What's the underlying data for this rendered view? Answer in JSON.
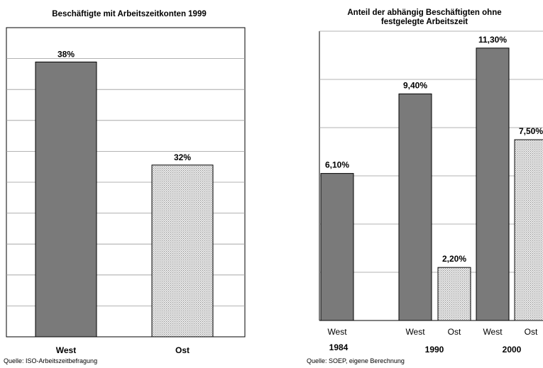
{
  "colors": {
    "west_fill": "#7a7a7a",
    "ost_fill": "#e4e4e4",
    "frame": "#000000",
    "grid": "#9a9a9a"
  },
  "chart_data": [
    {
      "type": "bar",
      "title": "Beschäftigte mit Arbeitszeitkonten 1999",
      "categories": [
        "West",
        "Ost"
      ],
      "values": [
        38,
        32
      ],
      "value_labels": [
        "38%",
        "32%"
      ],
      "ylim": [
        22,
        40
      ],
      "grid": true,
      "source": "Quelle: ISO-Arbeitszeitbefragung"
    },
    {
      "type": "bar",
      "title_lines": [
        "Anteil der abhängig Beschäftigten ohne",
        "festgelegte Arbeitszeit"
      ],
      "groups": [
        "1984",
        "1990",
        "2000"
      ],
      "bars": [
        {
          "group": "1984",
          "category": "West",
          "value": 6.1,
          "label": "6,10%"
        },
        {
          "group": "1990",
          "category": "West",
          "value": 9.4,
          "label": "9,40%"
        },
        {
          "group": "1990",
          "category": "Ost",
          "value": 2.2,
          "label": "2,20%"
        },
        {
          "group": "2000",
          "category": "West",
          "value": 11.3,
          "label": "11,30%"
        },
        {
          "group": "2000",
          "category": "Ost",
          "value": 7.5,
          "label": "7,50%"
        }
      ],
      "ylim": [
        0,
        12
      ],
      "grid": true,
      "source": "Quelle: SOEP, eigene Berechnung"
    }
  ]
}
